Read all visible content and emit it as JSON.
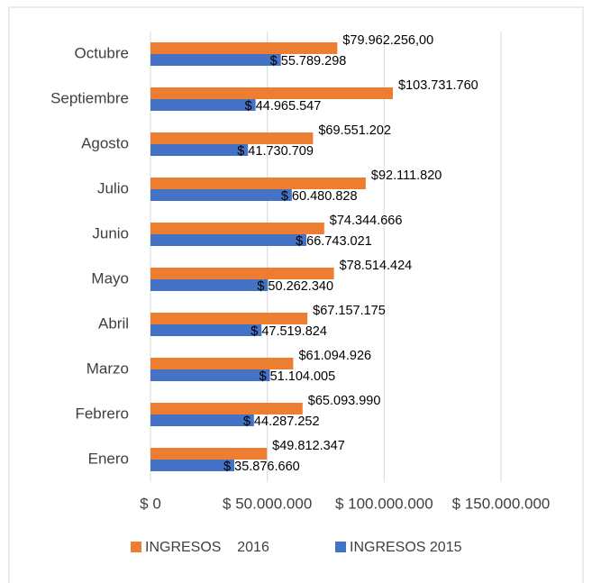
{
  "chart_data": {
    "type": "bar",
    "orientation": "horizontal",
    "categories": [
      "Enero",
      "Febrero",
      "Marzo",
      "Abril",
      "Mayo",
      "Junio",
      "Julio",
      "Agosto",
      "Septiembre",
      "Octubre"
    ],
    "series": [
      {
        "name": "INGRESOS    2016",
        "color": "#ed7d31",
        "values": [
          49812347,
          65093990,
          61094926,
          67157175,
          78514424,
          74344666,
          92111820,
          69551202,
          103731760,
          79962256
        ],
        "value_labels": [
          "$49.812.347",
          "$65.093.990",
          "$61.094.926",
          "$67.157.175",
          "$78.514.424",
          "$74.344.666",
          "$92.111.820",
          "$69.551.202",
          "$103.731.760",
          "$79.962.256,00"
        ]
      },
      {
        "name": "INGRESOS 2015",
        "color": "#4472c4",
        "values": [
          35876660,
          44287252,
          51104005,
          47519824,
          50262340,
          66743021,
          60480828,
          41730709,
          44965547,
          55789298
        ],
        "value_labels": [
          "$ 35.876.660",
          "$ 44.287.252",
          "$ 51.104.005",
          "$ 47.519.824",
          "$ 50.262.340",
          "$ 66.743.021",
          "$ 60.480.828",
          "$ 41.730.709",
          "$ 44.965.547",
          "$ 55.789.298"
        ]
      }
    ],
    "xlim": [
      0,
      150000000
    ],
    "xticks": [
      {
        "value": 0,
        "label": "$ 0"
      },
      {
        "value": 50000000,
        "label": "$ 50.000.000"
      },
      {
        "value": 100000000,
        "label": "$ 100.000.000"
      },
      {
        "value": 150000000,
        "label": "$ 150.000.000"
      }
    ],
    "grid": true,
    "legend": "bottom"
  }
}
